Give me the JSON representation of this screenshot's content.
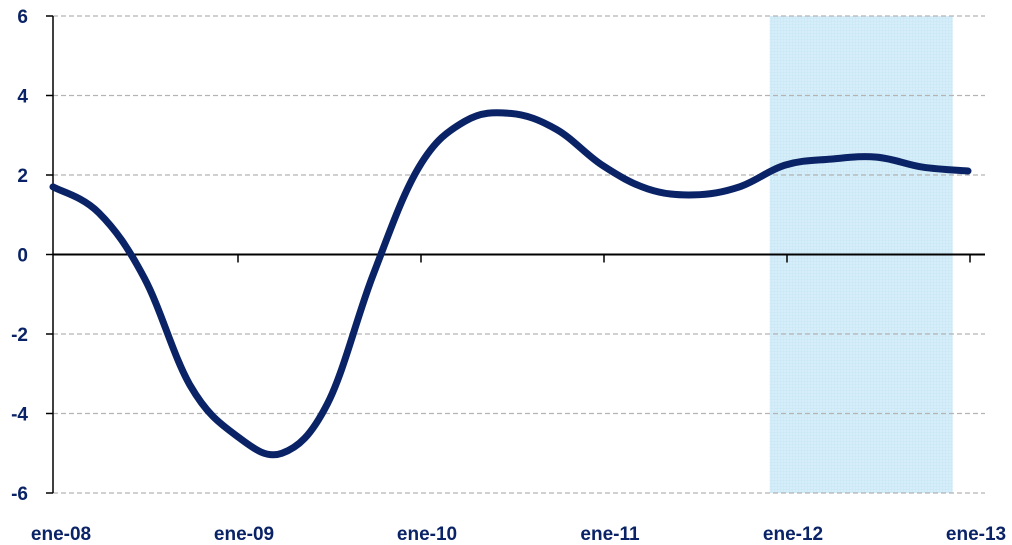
{
  "chart_data": {
    "type": "line",
    "title": "",
    "xlabel": "",
    "ylabel": "",
    "ylim": [
      -6,
      6
    ],
    "yticks": [
      "6",
      "4",
      "2",
      "0",
      "-2",
      "-4",
      "-6"
    ],
    "xticks": [
      "ene-08",
      "ene-09",
      "ene-10",
      "ene-11",
      "ene-12",
      "ene-13"
    ],
    "grid": true,
    "series": [
      {
        "x": [
          "2008-01",
          "2008-04",
          "2008-07",
          "2008-10",
          "2009-01",
          "2009-04",
          "2009-07",
          "2009-10",
          "2010-01",
          "2010-04",
          "2010-07",
          "2010-10",
          "2011-01",
          "2011-04",
          "2011-07",
          "2011-10",
          "2012-01",
          "2012-04",
          "2012-07",
          "2012-10",
          "2013-01"
        ],
        "values": [
          1.7,
          1.05,
          -0.6,
          -3.3,
          -4.55,
          -5.0,
          -3.75,
          -0.5,
          2.2,
          3.35,
          3.55,
          3.15,
          2.25,
          1.65,
          1.5,
          1.7,
          2.25,
          2.4,
          2.45,
          2.2,
          2.1
        ]
      }
    ],
    "forecast_shade": {
      "from": "2011-12",
      "to": "2012-12"
    },
    "colors": {
      "line": "#0a2366",
      "axis_text": "#0a2366",
      "shade": "#d9effa",
      "grid": "#b4b4b4",
      "axis": "#000000"
    }
  }
}
